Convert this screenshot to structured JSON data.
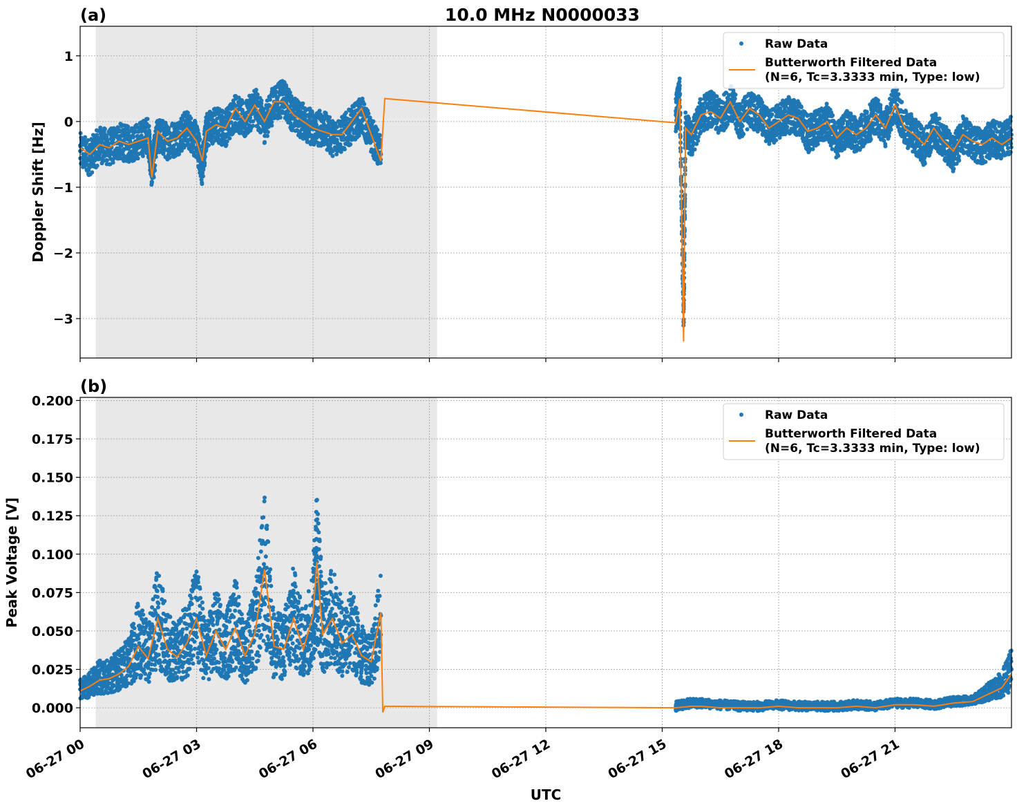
{
  "chart_data": [
    {
      "type": "scatter",
      "panel_label": "(a)",
      "title": "10.0 MHz N0000033",
      "xlabel": "",
      "ylabel": "Doppler Shift [Hz]",
      "xlim": [
        0,
        24
      ],
      "ylim": [
        -3.6,
        1.45
      ],
      "yticks": [
        1,
        0,
        -1,
        -2,
        -3
      ],
      "ytick_labels": [
        "1",
        "0",
        "−1",
        "−2",
        "−3"
      ],
      "shaded_region": [
        0.4,
        9.2
      ],
      "grid": true,
      "legend_position": "top-right",
      "legend": [
        "Raw Data",
        "Butterworth Filtered Data",
        "(N=6, Tc=3.3333 min, Type: low)"
      ],
      "series": [
        {
          "name": "Raw Data",
          "color": "#1f77b4",
          "x": [
            0.0,
            0.25,
            0.5,
            0.75,
            1.0,
            1.25,
            1.5,
            1.75,
            1.85,
            2.0,
            2.25,
            2.5,
            2.75,
            3.0,
            3.15,
            3.25,
            3.5,
            3.75,
            4.0,
            4.25,
            4.5,
            4.75,
            5.0,
            5.25,
            5.5,
            5.75,
            6.0,
            6.25,
            6.5,
            6.75,
            7.0,
            7.25,
            7.5,
            7.75,
            15.35,
            15.45,
            15.55,
            15.6,
            15.75,
            16.0,
            16.25,
            16.5,
            16.75,
            17.0,
            17.25,
            17.5,
            17.75,
            18.0,
            18.25,
            18.5,
            18.75,
            19.0,
            19.25,
            19.5,
            19.75,
            20.0,
            20.25,
            20.5,
            20.75,
            21.0,
            21.25,
            21.5,
            21.75,
            22.0,
            22.25,
            22.5,
            22.75,
            23.0,
            23.25,
            23.5,
            23.75,
            24.0
          ],
          "y": [
            -0.45,
            -0.55,
            -0.35,
            -0.4,
            -0.3,
            -0.35,
            -0.3,
            -0.2,
            -0.75,
            -0.2,
            -0.3,
            -0.25,
            -0.1,
            -0.3,
            -0.7,
            -0.15,
            -0.05,
            -0.1,
            0.15,
            0.0,
            0.25,
            -0.05,
            0.3,
            0.35,
            0.1,
            0.0,
            -0.1,
            -0.1,
            -0.25,
            -0.2,
            -0.05,
            0.1,
            -0.2,
            -0.5,
            0.1,
            0.4,
            -3.05,
            -0.1,
            -0.3,
            0.1,
            0.2,
            0.05,
            0.3,
            0.0,
            0.2,
            0.1,
            -0.1,
            0.0,
            0.1,
            0.05,
            -0.2,
            -0.1,
            0.0,
            -0.3,
            -0.1,
            -0.2,
            -0.1,
            0.1,
            -0.1,
            0.3,
            -0.1,
            -0.2,
            -0.4,
            -0.1,
            -0.3,
            -0.5,
            -0.2,
            -0.3,
            -0.4,
            -0.25,
            -0.3,
            -0.2
          ]
        },
        {
          "name": "Butterworth Filtered Data",
          "color": "#ff7f0e",
          "x": [
            0.0,
            0.25,
            0.5,
            0.75,
            1.0,
            1.25,
            1.5,
            1.75,
            1.85,
            2.0,
            2.25,
            2.5,
            2.75,
            3.0,
            3.15,
            3.25,
            3.5,
            3.75,
            4.0,
            4.25,
            4.5,
            4.75,
            5.0,
            5.25,
            5.5,
            5.75,
            6.0,
            6.25,
            6.5,
            6.75,
            7.0,
            7.25,
            7.5,
            7.75,
            7.85,
            15.35,
            15.45,
            15.55,
            15.6,
            15.75,
            16.0,
            16.25,
            16.5,
            16.75,
            17.0,
            17.25,
            17.5,
            17.75,
            18.0,
            18.25,
            18.5,
            18.75,
            19.0,
            19.25,
            19.5,
            19.75,
            20.0,
            20.25,
            20.5,
            20.75,
            21.0,
            21.25,
            21.5,
            21.75,
            22.0,
            22.25,
            22.5,
            22.75,
            23.0,
            23.25,
            23.5,
            23.75,
            24.0
          ],
          "y": [
            -0.4,
            -0.5,
            -0.35,
            -0.4,
            -0.3,
            -0.35,
            -0.3,
            -0.25,
            -0.85,
            -0.15,
            -0.3,
            -0.25,
            -0.1,
            -0.3,
            -0.6,
            -0.15,
            -0.05,
            -0.1,
            0.2,
            0.0,
            0.25,
            0.0,
            0.3,
            0.3,
            0.1,
            0.0,
            -0.1,
            -0.15,
            -0.2,
            -0.2,
            0.0,
            0.2,
            -0.2,
            -0.6,
            0.35,
            -0.02,
            0.35,
            -3.35,
            -0.1,
            -0.2,
            0.1,
            0.15,
            0.05,
            0.3,
            0.0,
            0.2,
            0.1,
            -0.1,
            0.0,
            0.1,
            0.05,
            -0.15,
            -0.1,
            0.0,
            -0.25,
            -0.1,
            -0.2,
            -0.1,
            0.1,
            -0.1,
            0.25,
            -0.1,
            -0.2,
            -0.35,
            -0.1,
            -0.3,
            -0.45,
            -0.2,
            -0.3,
            -0.35,
            -0.25,
            -0.35,
            -0.25
          ]
        }
      ]
    },
    {
      "type": "scatter",
      "panel_label": "(b)",
      "title": "",
      "xlabel": "UTC",
      "ylabel": "Peak Voltage [V]",
      "xlim": [
        0,
        24
      ],
      "ylim": [
        -0.013,
        0.202
      ],
      "yticks": [
        0.2,
        0.175,
        0.15,
        0.125,
        0.1,
        0.075,
        0.05,
        0.025,
        0.0
      ],
      "ytick_labels": [
        "0.200",
        "0.175",
        "0.150",
        "0.125",
        "0.100",
        "0.075",
        "0.050",
        "0.025",
        "0.000"
      ],
      "xticks": [
        0,
        3,
        6,
        9,
        12,
        15,
        18,
        21
      ],
      "xtick_labels": [
        "06-27 00",
        "06-27 03",
        "06-27 06",
        "06-27 09",
        "06-27 12",
        "06-27 15",
        "06-27 18",
        "06-27 21"
      ],
      "shaded_region": [
        0.4,
        9.2
      ],
      "grid": true,
      "legend_position": "top-right",
      "legend": [
        "Raw Data",
        "Butterworth Filtered Data",
        "(N=6, Tc=3.3333 min, Type: low)"
      ],
      "series": [
        {
          "name": "Raw Data",
          "color": "#1f77b4",
          "x": [
            0.0,
            0.25,
            0.5,
            0.75,
            1.0,
            1.25,
            1.5,
            1.75,
            2.0,
            2.25,
            2.5,
            2.75,
            3.0,
            3.25,
            3.5,
            3.75,
            4.0,
            4.25,
            4.5,
            4.75,
            5.0,
            5.25,
            5.5,
            5.75,
            6.0,
            6.1,
            6.25,
            6.5,
            6.75,
            7.0,
            7.25,
            7.5,
            7.75,
            15.35,
            15.5,
            15.75,
            16.0,
            16.5,
            17.0,
            17.5,
            18.0,
            18.5,
            19.0,
            19.5,
            20.0,
            20.5,
            21.0,
            21.5,
            22.0,
            22.5,
            23.0,
            23.25,
            23.5,
            23.75,
            24.0
          ],
          "y": [
            0.012,
            0.015,
            0.02,
            0.02,
            0.025,
            0.03,
            0.045,
            0.035,
            0.06,
            0.04,
            0.035,
            0.045,
            0.06,
            0.035,
            0.05,
            0.04,
            0.055,
            0.035,
            0.05,
            0.09,
            0.04,
            0.04,
            0.06,
            0.04,
            0.06,
            0.095,
            0.05,
            0.06,
            0.045,
            0.05,
            0.035,
            0.03,
            0.06,
            0.001,
            0.002,
            0.003,
            0.003,
            0.002,
            0.001,
            0.001,
            0.002,
            0.001,
            0.001,
            0.001,
            0.002,
            0.001,
            0.003,
            0.003,
            0.002,
            0.004,
            0.005,
            0.008,
            0.012,
            0.015,
            0.025
          ]
        },
        {
          "name": "Butterworth Filtered Data",
          "color": "#ff7f0e",
          "x": [
            0.0,
            0.25,
            0.5,
            0.75,
            1.0,
            1.25,
            1.5,
            1.75,
            2.0,
            2.25,
            2.5,
            2.75,
            3.0,
            3.25,
            3.5,
            3.75,
            4.0,
            4.25,
            4.5,
            4.75,
            5.0,
            5.25,
            5.5,
            5.75,
            6.0,
            6.1,
            6.25,
            6.5,
            6.75,
            7.0,
            7.25,
            7.5,
            7.75,
            7.8,
            7.85,
            15.35,
            15.75,
            16.0,
            16.5,
            17.0,
            17.5,
            18.0,
            18.5,
            19.0,
            19.5,
            20.0,
            20.5,
            21.0,
            21.5,
            22.0,
            22.5,
            23.0,
            23.25,
            23.5,
            23.75,
            24.0
          ],
          "y": [
            0.011,
            0.014,
            0.018,
            0.019,
            0.022,
            0.027,
            0.04,
            0.032,
            0.058,
            0.038,
            0.033,
            0.042,
            0.058,
            0.034,
            0.05,
            0.038,
            0.052,
            0.034,
            0.048,
            0.09,
            0.04,
            0.038,
            0.058,
            0.038,
            0.06,
            0.095,
            0.048,
            0.058,
            0.042,
            0.048,
            0.034,
            0.03,
            0.062,
            -0.003,
            0.001,
            0.0,
            0.001,
            0.001,
            0.0,
            0.0,
            0.0,
            0.001,
            0.0,
            0.0,
            0.0,
            0.001,
            0.0,
            0.002,
            0.002,
            0.001,
            0.003,
            0.004,
            0.007,
            0.01,
            0.013,
            0.022
          ]
        }
      ]
    }
  ]
}
